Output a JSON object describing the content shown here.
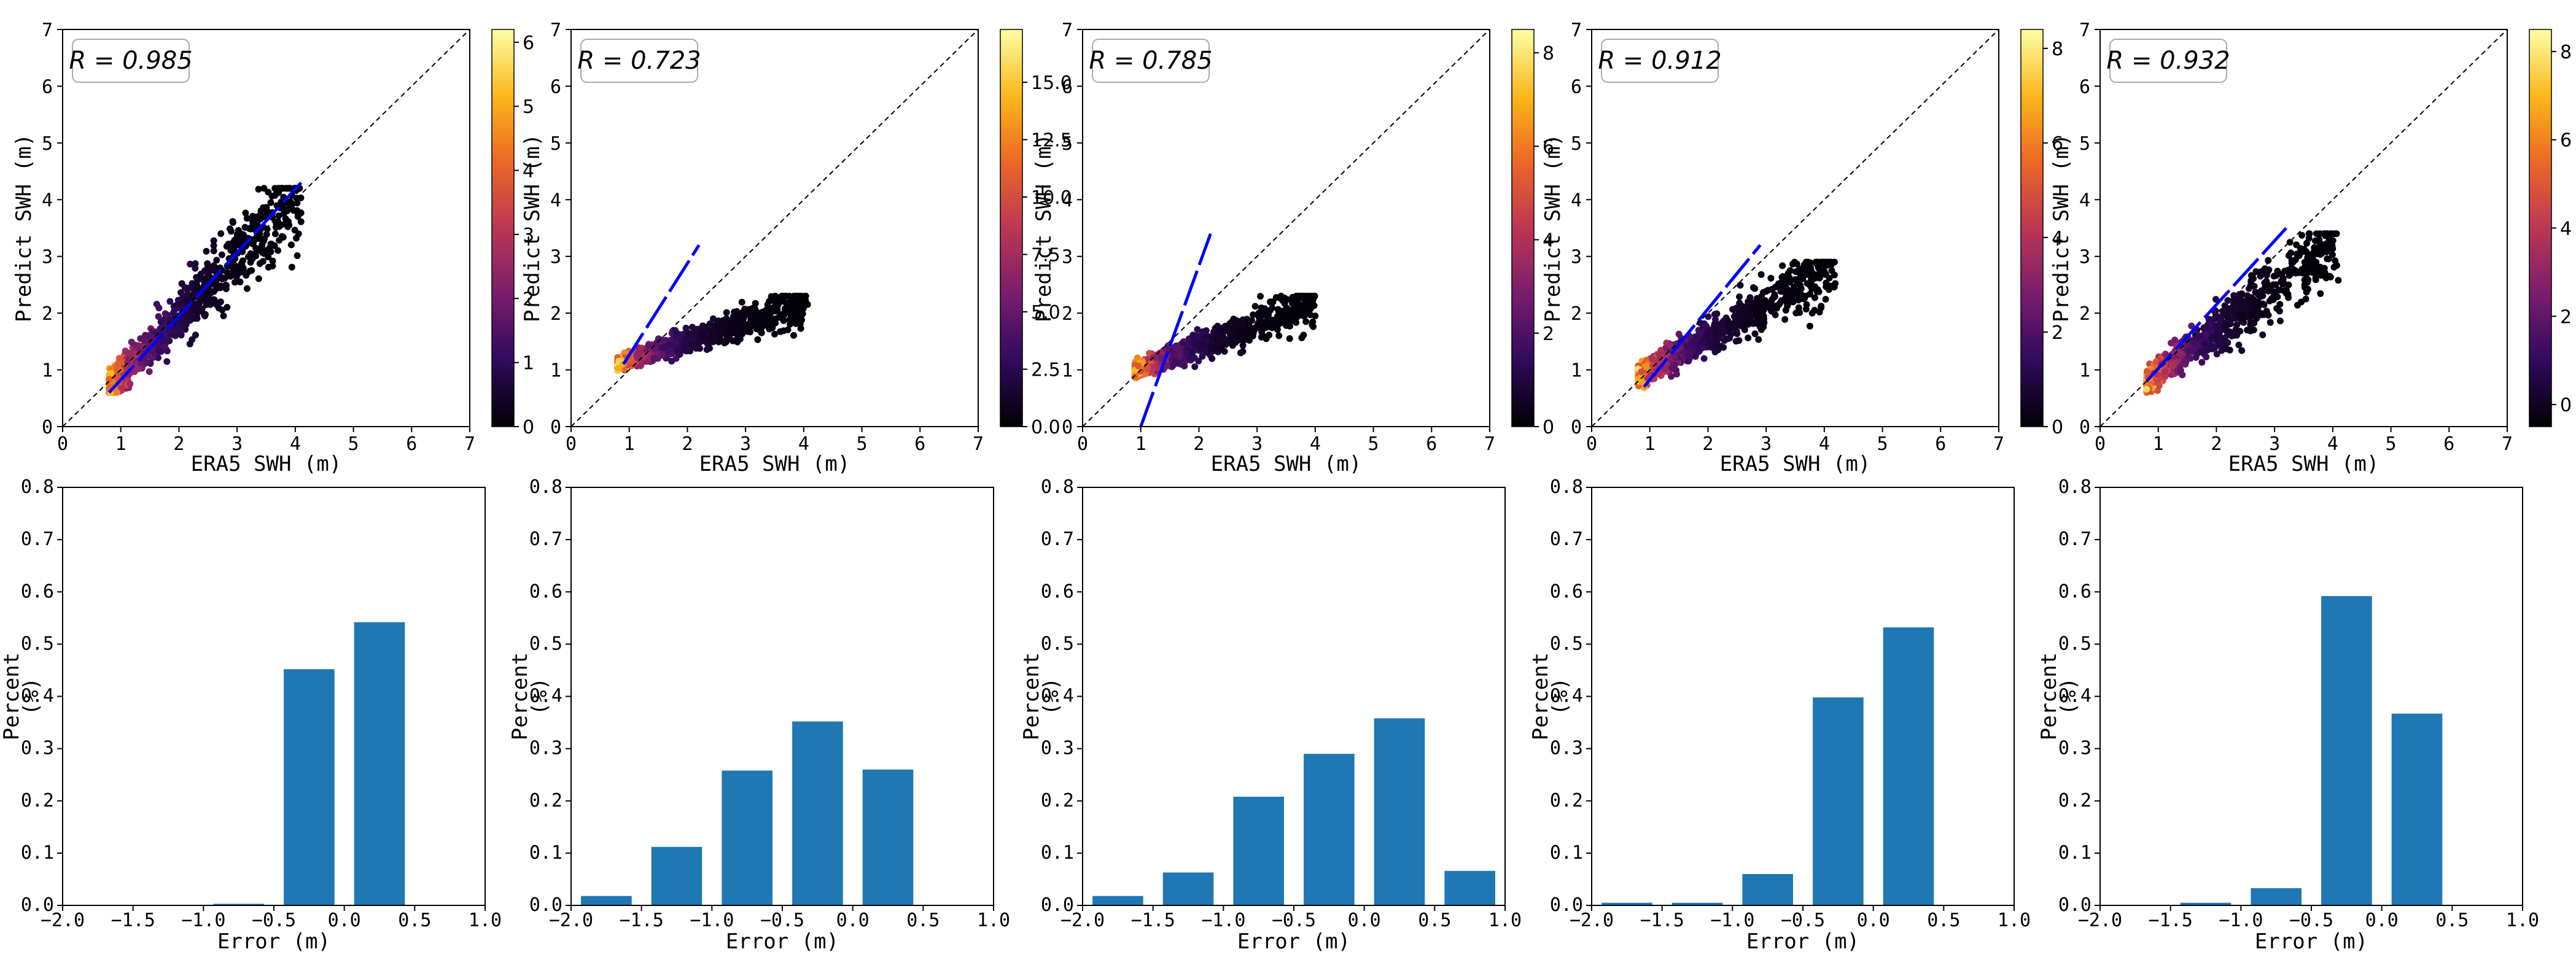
{
  "figure": {
    "scatter_xlabel": "ERA5 SWH (m)",
    "scatter_ylabel": "Predict SWH (m)",
    "hist_xlabel": "Error (m)",
    "hist_ylabel_top": "Percent",
    "hist_ylabel_bottom": "(%)"
  },
  "chart_data": [
    {
      "type": "scatter",
      "panel": 1,
      "r_label": "R = 0.985",
      "r_value": 0.985,
      "xlabel": "ERA5 SWH (m)",
      "ylabel": "Predict SWH (m)",
      "xlim": [
        0,
        7
      ],
      "ylim": [
        0,
        7
      ],
      "xticks": [
        "0",
        "1",
        "2",
        "3",
        "4",
        "5",
        "6",
        "7"
      ],
      "yticks": [
        "0",
        "1",
        "2",
        "3",
        "4",
        "5",
        "6",
        "7"
      ],
      "identity_line": [
        [
          0,
          0
        ],
        [
          7,
          7
        ]
      ],
      "fit_line": [
        [
          0.8,
          0.6
        ],
        [
          4.1,
          4.3
        ]
      ],
      "points_x_range": [
        0.8,
        4.1
      ],
      "points_y_range": [
        0.7,
        4.1
      ],
      "colorbar": {
        "min": 0,
        "max": 6.2,
        "ticks": [
          "0",
          "1",
          "2",
          "3",
          "4",
          "5",
          "6"
        ]
      }
    },
    {
      "type": "scatter",
      "panel": 2,
      "r_label": "R = 0.723",
      "r_value": 0.723,
      "xlabel": "ERA5 SWH (m)",
      "ylabel": "Predict SWH (m)",
      "xlim": [
        0,
        7
      ],
      "ylim": [
        0,
        7
      ],
      "xticks": [
        "0",
        "1",
        "2",
        "3",
        "4",
        "5",
        "6",
        "7"
      ],
      "yticks": [
        "0",
        "1",
        "2",
        "3",
        "4",
        "5",
        "6",
        "7"
      ],
      "identity_line": [
        [
          0,
          0
        ],
        [
          7,
          7
        ]
      ],
      "fit_line": [
        [
          0.9,
          1.1
        ],
        [
          2.2,
          3.2
        ]
      ],
      "points_x_range": [
        0.8,
        4.1
      ],
      "points_y_range": [
        1.1,
        2.2
      ],
      "colorbar": {
        "min": 0,
        "max": 17.3,
        "ticks": [
          "0.0",
          "2.5",
          "5.0",
          "7.5",
          "10.0",
          "12.5",
          "15.0"
        ]
      }
    },
    {
      "type": "scatter",
      "panel": 3,
      "r_label": "R = 0.785",
      "r_value": 0.785,
      "xlabel": "ERA5 SWH (m)",
      "ylabel": "Predict SWH (m)",
      "xlim": [
        0,
        7
      ],
      "ylim": [
        0,
        7
      ],
      "xticks": [
        "0",
        "1",
        "2",
        "3",
        "4",
        "5",
        "6",
        "7"
      ],
      "yticks": [
        "0",
        "1",
        "2",
        "3",
        "4",
        "5",
        "6",
        "7"
      ],
      "identity_line": [
        [
          0,
          0
        ],
        [
          7,
          7
        ]
      ],
      "fit_line": [
        [
          1.0,
          0.0
        ],
        [
          2.2,
          3.4
        ]
      ],
      "points_x_range": [
        0.9,
        4.0
      ],
      "points_y_range": [
        1.0,
        2.2
      ],
      "colorbar": {
        "min": 0,
        "max": 8.5,
        "ticks": [
          "0",
          "2",
          "4",
          "6",
          "8"
        ]
      }
    },
    {
      "type": "scatter",
      "panel": 4,
      "r_label": "R = 0.912",
      "r_value": 0.912,
      "xlabel": "ERA5 SWH (m)",
      "ylabel": "Predict SWH (m)",
      "xlim": [
        0,
        7
      ],
      "ylim": [
        0,
        7
      ],
      "xticks": [
        "0",
        "1",
        "2",
        "3",
        "4",
        "5",
        "6",
        "7"
      ],
      "yticks": [
        "0",
        "1",
        "2",
        "3",
        "4",
        "5",
        "6",
        "7"
      ],
      "identity_line": [
        [
          0,
          0
        ],
        [
          7,
          7
        ]
      ],
      "fit_line": [
        [
          0.9,
          0.7
        ],
        [
          2.9,
          3.2
        ]
      ],
      "points_x_range": [
        0.8,
        4.2
      ],
      "points_y_range": [
        0.9,
        2.8
      ],
      "colorbar": {
        "min": 0,
        "max": 8.4,
        "ticks": [
          "0",
          "2",
          "4",
          "6",
          "8"
        ]
      }
    },
    {
      "type": "scatter",
      "panel": 5,
      "r_label": "R = 0.932",
      "r_value": 0.932,
      "xlabel": "ERA5 SWH (m)",
      "ylabel": "Predict SWH (m)",
      "xlim": [
        0,
        7
      ],
      "ylim": [
        0,
        7
      ],
      "xticks": [
        "0",
        "1",
        "2",
        "3",
        "4",
        "5",
        "6",
        "7"
      ],
      "yticks": [
        "0",
        "1",
        "2",
        "3",
        "4",
        "5",
        "6",
        "7"
      ],
      "identity_line": [
        [
          0,
          0
        ],
        [
          7,
          7
        ]
      ],
      "fit_line": [
        [
          0.8,
          0.8
        ],
        [
          3.2,
          3.5
        ]
      ],
      "points_x_range": [
        0.8,
        4.1
      ],
      "points_y_range": [
        0.8,
        3.3
      ],
      "colorbar": {
        "min": -0.5,
        "max": 8.5,
        "ticks": [
          "0",
          "2",
          "4",
          "6",
          "8"
        ]
      }
    },
    {
      "type": "bar",
      "panel": 6,
      "xlabel": "Error (m)",
      "ylabel": "Percent (%)",
      "xlim": [
        -2.0,
        1.0
      ],
      "ylim": [
        0,
        0.8
      ],
      "xticks": [
        "−2.0",
        "−1.5",
        "−1.0",
        "−0.5",
        "0.0",
        "0.5",
        "1.0"
      ],
      "yticks": [
        "0.0",
        "0.1",
        "0.2",
        "0.3",
        "0.4",
        "0.5",
        "0.6",
        "0.7",
        "0.8"
      ],
      "categories": [
        -1.75,
        -1.25,
        -0.75,
        -0.25,
        0.25,
        0.75
      ],
      "values": [
        0.0,
        0.001,
        0.003,
        0.452,
        0.542,
        0.0
      ]
    },
    {
      "type": "bar",
      "panel": 7,
      "xlabel": "Error (m)",
      "ylabel": "Percent (%)",
      "xlim": [
        -2.0,
        1.0
      ],
      "ylim": [
        0,
        0.8
      ],
      "xticks": [
        "−2.0",
        "−1.5",
        "−1.0",
        "−0.5",
        "0.0",
        "0.5",
        "1.0"
      ],
      "yticks": [
        "0.0",
        "0.1",
        "0.2",
        "0.3",
        "0.4",
        "0.5",
        "0.6",
        "0.7",
        "0.8"
      ],
      "categories": [
        -1.75,
        -1.25,
        -0.75,
        -0.25,
        0.25,
        0.75
      ],
      "values": [
        0.018,
        0.112,
        0.258,
        0.352,
        0.26,
        0.0
      ]
    },
    {
      "type": "bar",
      "panel": 8,
      "xlabel": "Error (m)",
      "ylabel": "Percent (%)",
      "xlim": [
        -2.0,
        1.0
      ],
      "ylim": [
        0,
        0.8
      ],
      "xticks": [
        "−2.0",
        "−1.5",
        "−1.0",
        "−0.5",
        "0.0",
        "0.5",
        "1.0"
      ],
      "yticks": [
        "0.0",
        "0.1",
        "0.2",
        "0.3",
        "0.4",
        "0.5",
        "0.6",
        "0.7",
        "0.8"
      ],
      "categories": [
        -1.75,
        -1.25,
        -0.75,
        -0.25,
        0.25,
        0.75
      ],
      "values": [
        0.018,
        0.063,
        0.208,
        0.29,
        0.358,
        0.066
      ]
    },
    {
      "type": "bar",
      "panel": 9,
      "xlabel": "Error (m)",
      "ylabel": "Percent (%)",
      "xlim": [
        -2.0,
        1.0
      ],
      "ylim": [
        0,
        0.8
      ],
      "xticks": [
        "−2.0",
        "−1.5",
        "−1.0",
        "−0.5",
        "0.0",
        "0.5",
        "1.0"
      ],
      "yticks": [
        "0.0",
        "0.1",
        "0.2",
        "0.3",
        "0.4",
        "0.5",
        "0.6",
        "0.7",
        "0.8"
      ],
      "categories": [
        -1.75,
        -1.25,
        -0.75,
        -0.25,
        0.25,
        0.75
      ],
      "values": [
        0.005,
        0.005,
        0.06,
        0.398,
        0.532,
        0.0
      ]
    },
    {
      "type": "bar",
      "panel": 10,
      "xlabel": "Error (m)",
      "ylabel": "Percent (%)",
      "xlim": [
        -2.0,
        1.0
      ],
      "ylim": [
        0,
        0.8
      ],
      "xticks": [
        "−2.0",
        "−1.5",
        "−1.0",
        "−0.5",
        "0.0",
        "0.5",
        "1.0"
      ],
      "yticks": [
        "0.0",
        "0.1",
        "0.2",
        "0.3",
        "0.4",
        "0.5",
        "0.6",
        "0.7",
        "0.8"
      ],
      "categories": [
        -1.75,
        -1.25,
        -0.75,
        -0.25,
        0.25,
        0.75
      ],
      "values": [
        0.0,
        0.005,
        0.033,
        0.592,
        0.367,
        0.0
      ]
    }
  ],
  "colors": {
    "bar": "#1f77b4",
    "fit_line": "#0000ff",
    "identity_line": "#000000",
    "colormap": [
      "#000004",
      "#320a5e",
      "#781c6d",
      "#bc3754",
      "#ed6925",
      "#fbb61a",
      "#fcffa4"
    ]
  }
}
